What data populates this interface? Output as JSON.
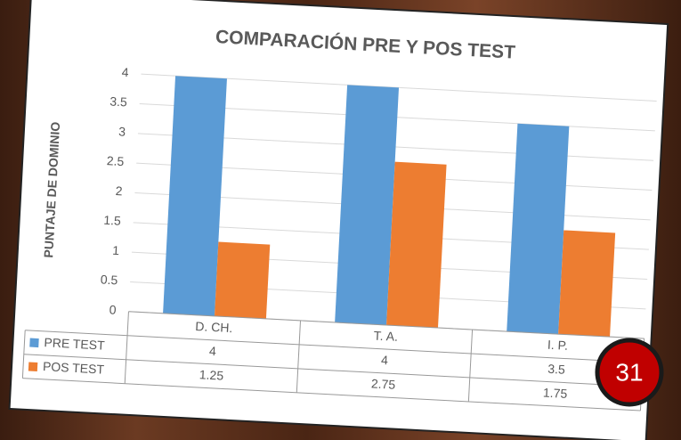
{
  "chart_data": {
    "type": "bar",
    "title": "COMPARACIÓN PRE Y POS TEST",
    "y_label": "PUNTAJE DE DOMINIO",
    "categories": [
      "D. CH.",
      "T. A.",
      "I. P."
    ],
    "series": [
      {
        "name": "PRE TEST",
        "color": "#5b9bd5",
        "values": [
          4,
          4,
          3.5
        ]
      },
      {
        "name": "POS TEST",
        "color": "#ed7d31",
        "values": [
          1.25,
          2.75,
          1.75
        ]
      }
    ],
    "ylim": [
      0,
      4
    ],
    "yticks": [
      0,
      0.5,
      1,
      1.5,
      2,
      2.5,
      3,
      3.5,
      4
    ],
    "grid": true,
    "data_table": true
  },
  "page_number": "31"
}
